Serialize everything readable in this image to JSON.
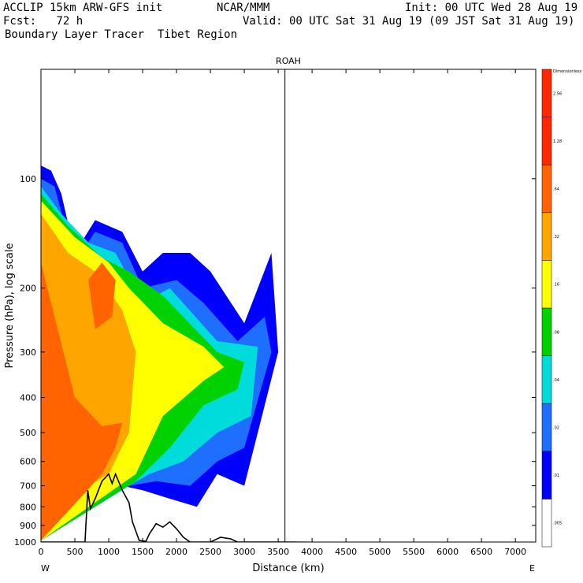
{
  "header": {
    "title_left": "ACCLIP 15km ARW-GFS init",
    "org": "NCAR/MMM",
    "init": "Init: 00 UTC Wed 28 Aug 19",
    "fcst": "Fcst:   72 h",
    "valid": "Valid: 00 UTC Sat 31 Aug 19 (09 JST Sat 31 Aug 19)",
    "field": "Boundary Layer Tracer  Tibet Region"
  },
  "chart_data": {
    "type": "contour-cross-section",
    "title": "ROAH",
    "xlabel": "Distance (km)",
    "ylabel": "Pressure (hPa), log scale",
    "xlim": [
      0,
      7300
    ],
    "ylim": [
      1000,
      50
    ],
    "y_scale": "log",
    "x_ticks": [
      0,
      500,
      1000,
      1500,
      2000,
      2500,
      3000,
      3500,
      4000,
      4500,
      5000,
      5500,
      6000,
      6500,
      7000
    ],
    "y_ticks": [
      100,
      200,
      300,
      400,
      500,
      600,
      700,
      800,
      900,
      1000
    ],
    "x_end_labels": [
      "W",
      "E"
    ],
    "station_marker_km": 3600,
    "colorbar": {
      "top_label": "Dimensionless",
      "levels": [
        ".005",
        ".01",
        ".02",
        ".04",
        ".08",
        ".16",
        ".32",
        ".64",
        "1.28",
        "2.56"
      ],
      "colors": [
        "#ffffff",
        "#0000ff",
        "#1e6eff",
        "#00dcdc",
        "#00d200",
        "#ffff00",
        "#ffa500",
        "#ff6400",
        "#ff2800"
      ]
    },
    "terrain_profile": [
      [
        0,
        1000
      ],
      [
        300,
        1000
      ],
      [
        650,
        1000
      ],
      [
        690,
        720
      ],
      [
        730,
        810
      ],
      [
        800,
        760
      ],
      [
        900,
        680
      ],
      [
        1000,
        650
      ],
      [
        1050,
        690
      ],
      [
        1100,
        650
      ],
      [
        1200,
        720
      ],
      [
        1300,
        780
      ],
      [
        1350,
        880
      ],
      [
        1450,
        990
      ],
      [
        1550,
        995
      ],
      [
        1600,
        950
      ],
      [
        1700,
        890
      ],
      [
        1800,
        910
      ],
      [
        1900,
        880
      ],
      [
        2000,
        920
      ],
      [
        2100,
        970
      ],
      [
        2200,
        1000
      ],
      [
        2500,
        1000
      ],
      [
        2650,
        970
      ],
      [
        2800,
        980
      ],
      [
        2900,
        1000
      ],
      [
        3600,
        1000
      ],
      [
        7300,
        1010
      ]
    ],
    "tracer_regions": [
      {
        "level": ".01",
        "polygon": [
          [
            0,
            92
          ],
          [
            150,
            95
          ],
          [
            300,
            110
          ],
          [
            500,
            160
          ],
          [
            800,
            130
          ],
          [
            1200,
            140
          ],
          [
            1500,
            180
          ],
          [
            1800,
            160
          ],
          [
            2200,
            160
          ],
          [
            2500,
            180
          ],
          [
            3000,
            250
          ],
          [
            3400,
            160
          ],
          [
            3500,
            300
          ],
          [
            3000,
            700
          ],
          [
            2600,
            650
          ],
          [
            2300,
            800
          ],
          [
            1900,
            760
          ],
          [
            1500,
            720
          ],
          [
            1200,
            700
          ],
          [
            900,
            690
          ],
          [
            0,
            990
          ]
        ]
      },
      {
        "level": ".02",
        "polygon": [
          [
            0,
            100
          ],
          [
            200,
            105
          ],
          [
            500,
            170
          ],
          [
            800,
            140
          ],
          [
            1200,
            150
          ],
          [
            1500,
            200
          ],
          [
            2000,
            190
          ],
          [
            2400,
            220
          ],
          [
            2900,
            280
          ],
          [
            3300,
            240
          ],
          [
            3400,
            300
          ],
          [
            3000,
            550
          ],
          [
            2600,
            600
          ],
          [
            2200,
            700
          ],
          [
            1700,
            680
          ],
          [
            1300,
            700
          ],
          [
            0,
            990
          ]
        ]
      },
      {
        "level": ".04",
        "polygon": [
          [
            0,
            105
          ],
          [
            300,
            125
          ],
          [
            700,
            150
          ],
          [
            1100,
            160
          ],
          [
            1500,
            220
          ],
          [
            1900,
            200
          ],
          [
            2600,
            280
          ],
          [
            3200,
            290
          ],
          [
            3100,
            450
          ],
          [
            2600,
            500
          ],
          [
            2100,
            600
          ],
          [
            1600,
            650
          ],
          [
            1300,
            700
          ],
          [
            0,
            990
          ]
        ]
      },
      {
        "level": ".08",
        "polygon": [
          [
            0,
            110
          ],
          [
            400,
            135
          ],
          [
            900,
            165
          ],
          [
            1300,
            180
          ],
          [
            1800,
            210
          ],
          [
            2600,
            300
          ],
          [
            3000,
            320
          ],
          [
            2900,
            380
          ],
          [
            2400,
            420
          ],
          [
            1900,
            550
          ],
          [
            1400,
            680
          ],
          [
            0,
            990
          ]
        ]
      },
      {
        "level": ".16",
        "polygon": [
          [
            0,
            115
          ],
          [
            500,
            145
          ],
          [
            1000,
            170
          ],
          [
            1300,
            200
          ],
          [
            1800,
            250
          ],
          [
            2400,
            290
          ],
          [
            2700,
            330
          ],
          [
            2400,
            360
          ],
          [
            1800,
            450
          ],
          [
            1400,
            650
          ],
          [
            0,
            990
          ]
        ]
      },
      {
        "level": ".32",
        "polygon": [
          [
            0,
            125
          ],
          [
            400,
            160
          ],
          [
            800,
            180
          ],
          [
            1200,
            230
          ],
          [
            1400,
            300
          ],
          [
            1300,
            500
          ],
          [
            1000,
            650
          ],
          [
            700,
            700
          ],
          [
            0,
            990
          ]
        ]
      },
      {
        "level": ".64",
        "polygon": [
          [
            0,
            170
          ],
          [
            500,
            400
          ],
          [
            900,
            480
          ],
          [
            1200,
            470
          ],
          [
            1100,
            550
          ],
          [
            900,
            650
          ],
          [
            600,
            750
          ],
          [
            0,
            990
          ]
        ]
      },
      {
        "level": ".64",
        "polygon": [
          [
            700,
            190
          ],
          [
            900,
            170
          ],
          [
            1100,
            190
          ],
          [
            1050,
            240
          ],
          [
            800,
            260
          ]
        ]
      }
    ]
  }
}
